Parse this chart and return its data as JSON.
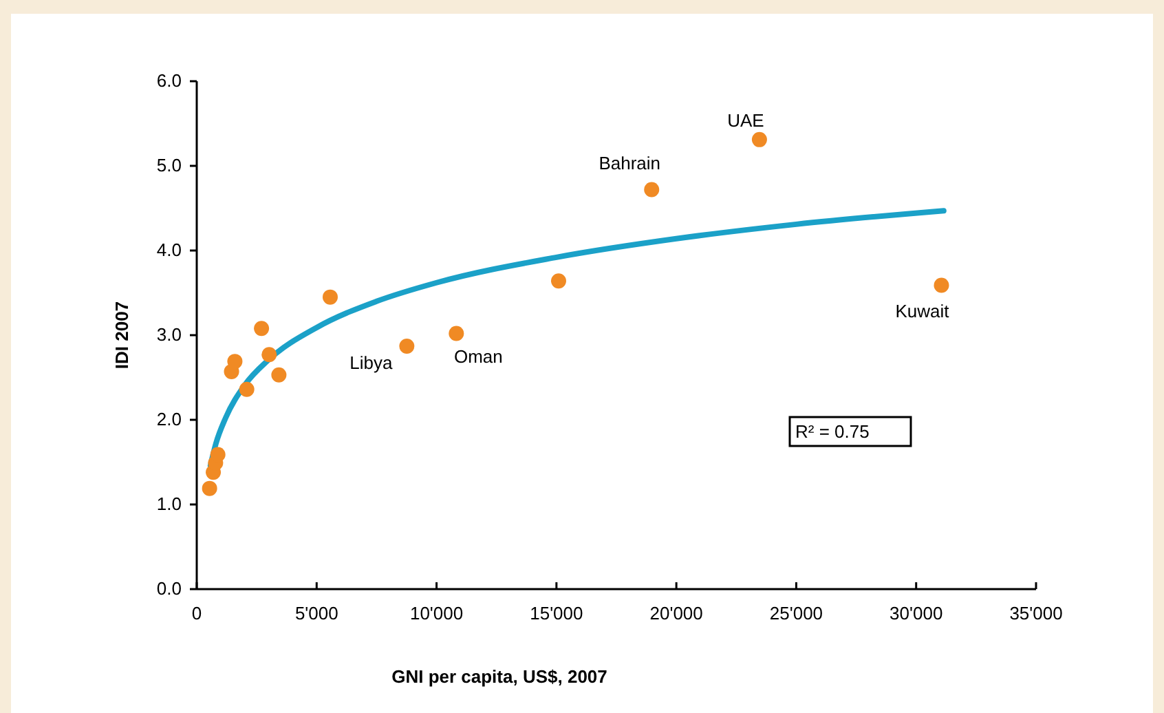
{
  "chart_data": {
    "type": "scatter",
    "xlabel": "GNI per capita, US$, 2007",
    "ylabel": "IDI 2007",
    "series": [
      {
        "color": "#f08a24",
        "marker": "circle",
        "x": [
          535,
          690,
          785,
          880,
          1450,
          1590,
          2085,
          2700,
          3020,
          3425,
          5565,
          8760,
          10825,
          15090,
          18970,
          23465,
          31055
        ],
        "values": [
          1.19,
          1.38,
          1.49,
          1.59,
          2.57,
          2.69,
          2.36,
          3.08,
          2.77,
          2.53,
          3.45,
          2.87,
          3.02,
          3.64,
          4.72,
          5.31,
          3.59
        ]
      },
      {
        "type": "line",
        "marker": "none",
        "color": "#1ba1c8",
        "x": [
          570,
          800,
          1200,
          2000,
          3000,
          5000,
          7500,
          10000,
          15000,
          20000,
          25000,
          31150
        ],
        "values": [
          1.46,
          1.72,
          2.02,
          2.41,
          2.71,
          3.09,
          3.4,
          3.62,
          3.92,
          4.14,
          4.31,
          4.47
        ]
      }
    ],
    "annotations": [
      {
        "text": "Libya",
        "x": 8760,
        "y": 2.87
      },
      {
        "text": "Oman",
        "x": 10825,
        "y": 3.02
      },
      {
        "text": "Bahrain",
        "x": 18970,
        "y": 4.72
      },
      {
        "text": "UAE",
        "x": 23465,
        "y": 5.31
      },
      {
        "text": "Kuwait",
        "x": 31055,
        "y": 3.59
      },
      "R² = 0.75"
    ],
    "xlim": [
      0,
      35000
    ],
    "ylim": [
      0,
      6
    ],
    "xticks": [
      0,
      {
        "value": 5000,
        "label": "5'000"
      },
      {
        "value": 10000,
        "label": "10'000"
      },
      {
        "value": 15000,
        "label": "15'000"
      },
      {
        "value": 20000,
        "label": "20'000"
      },
      {
        "value": 25000,
        "label": "25'000"
      },
      {
        "value": 30000,
        "label": "30'000"
      },
      {
        "value": 35000,
        "label": "35'000"
      }
    ],
    "yticks": [
      {
        "value": 0,
        "label": "0.0"
      },
      {
        "value": 1,
        "label": "1.0"
      },
      {
        "value": 2,
        "label": "2.0"
      },
      {
        "value": 3,
        "label": "3.0"
      },
      {
        "value": 4,
        "label": "4.0"
      },
      {
        "value": 5,
        "label": "5.0"
      },
      {
        "value": 6,
        "label": "6.0"
      }
    ],
    "grid": false,
    "line_style": "solid"
  }
}
